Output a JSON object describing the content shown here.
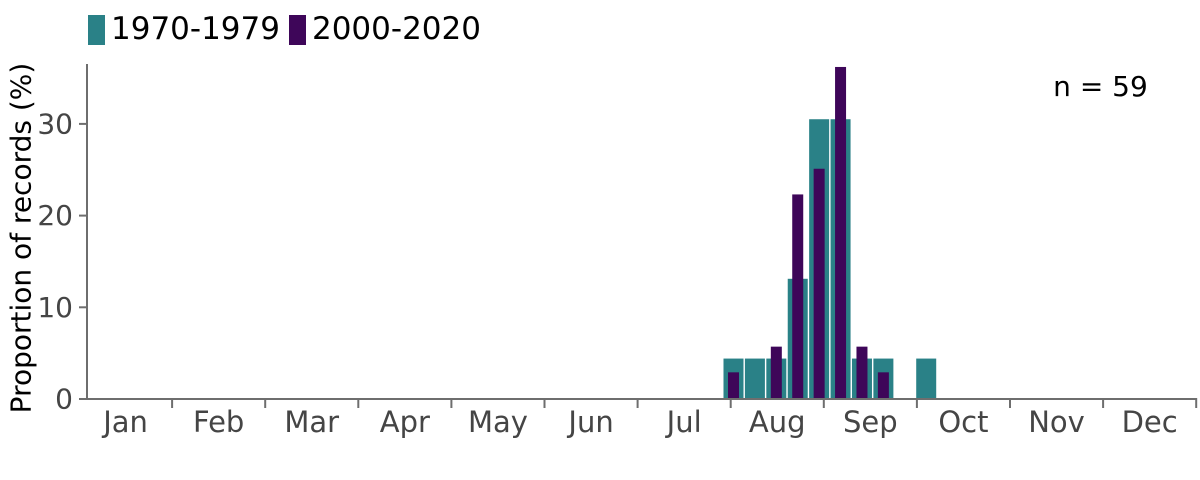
{
  "figure": {
    "background": "#ffffff",
    "annotation": "n = 59"
  },
  "chart_data": {
    "type": "bar",
    "title": "",
    "xlabel": "",
    "ylabel": "Proportion of records (%)",
    "annotation": "n = 59",
    "legend_position": "top-left",
    "grid": "off",
    "ylim": [
      0,
      36.5
    ],
    "yticks": [
      0,
      10,
      20,
      30
    ],
    "x_axis_unit": "months Jan-Dec",
    "month_labels": [
      "Jan",
      "Feb",
      "Mar",
      "Apr",
      "May",
      "Jun",
      "Jul",
      "Aug",
      "Sep",
      "Oct",
      "Nov",
      "Dec"
    ],
    "bin_width": "1 week",
    "x_month_positions": [
      7.03,
      7.26,
      7.49,
      7.72,
      7.95,
      8.18,
      8.41,
      8.64,
      9.1
    ],
    "approx_bin_centers": [
      "Aug 1",
      "Aug 8",
      "Aug 15",
      "Aug 22",
      "Aug 29",
      "Sep 5",
      "Sep 12",
      "Sep 19",
      "Oct 3"
    ],
    "series": [
      {
        "name": "1970-1979",
        "color": "#2a8187",
        "values": [
          4.3,
          4.3,
          4.3,
          13.0,
          30.4,
          30.4,
          4.3,
          4.3,
          4.3
        ]
      },
      {
        "name": "2000-2020",
        "color": "#3e0659",
        "values": [
          2.8,
          0,
          5.6,
          22.2,
          25.0,
          36.1,
          5.6,
          2.8,
          0
        ]
      }
    ],
    "axis_color": "#6e6e6e",
    "axis_text_color": "#454545"
  }
}
